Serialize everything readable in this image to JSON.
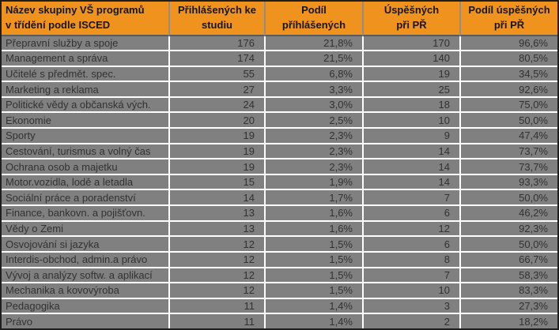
{
  "chart_data": {
    "type": "table",
    "title": "",
    "columns": [
      "Název skupiny VŠ programů\nv třídění podle ISCED",
      "Přihlášených ke\nstudiu",
      "Podíl\npříhlášených",
      "Úspěšných\npři PŘ",
      "Podíl úspěšných\npři PŘ"
    ],
    "rows": [
      [
        "Přepravní služby a spoje",
        "176",
        "21,8%",
        "170",
        "96,6%"
      ],
      [
        "Management a správa",
        "174",
        "21,5%",
        "140",
        "80,5%"
      ],
      [
        "Učitelé s předmět. spec.",
        "55",
        "6,8%",
        "19",
        "34,5%"
      ],
      [
        "Marketing a reklama",
        "27",
        "3,3%",
        "25",
        "92,6%"
      ],
      [
        "Politické vědy a občanská vých.",
        "24",
        "3,0%",
        "18",
        "75,0%"
      ],
      [
        "Ekonomie",
        "20",
        "2,5%",
        "10",
        "50,0%"
      ],
      [
        "Sporty",
        "19",
        "2,3%",
        "9",
        "47,4%"
      ],
      [
        "Cestování, turismus a volný čas",
        "19",
        "2,3%",
        "14",
        "73,7%"
      ],
      [
        "Ochrana osob a majetku",
        "19",
        "2,3%",
        "14",
        "73,7%"
      ],
      [
        "Motor.vozidla, lodě a letadla",
        "15",
        "1,9%",
        "14",
        "93,3%"
      ],
      [
        "Sociální práce a poradenství",
        "14",
        "1,7%",
        "7",
        "50,0%"
      ],
      [
        "Finance, bankovn. a pojišťovn.",
        "13",
        "1,6%",
        "6",
        "46,2%"
      ],
      [
        "Vědy o Zemi",
        "13",
        "1,6%",
        "12",
        "92,3%"
      ],
      [
        "Osvojování si jazyka",
        "12",
        "1,5%",
        "6",
        "50,0%"
      ],
      [
        "Interdis-obchod, admin.a právo",
        "12",
        "1,5%",
        "8",
        "66,7%"
      ],
      [
        "Vývoj a analýzy softw. a aplikací",
        "12",
        "1,5%",
        "7",
        "58,3%"
      ],
      [
        "Mechanika a kovovýroba",
        "12",
        "1,5%",
        "10",
        "83,3%"
      ],
      [
        "Pedagogika",
        "11",
        "1,4%",
        "3",
        "27,3%"
      ],
      [
        "Právo",
        "11",
        "1,4%",
        "2",
        "18,2%"
      ]
    ],
    "layout": {
      "header_rows": 1,
      "data_rows": 19,
      "first_column_align": "left",
      "value_columns_align": "right"
    }
  },
  "colors": {
    "header_bg": "#F0921E",
    "header_text": "#161616",
    "row_bg": "#808080",
    "row_text": "#323232",
    "grid_line": "#FFFFFF",
    "outer_border": "#1E1E1E",
    "header_divider": "#8E8E8E",
    "header_bottom": "#5A5A5A"
  }
}
